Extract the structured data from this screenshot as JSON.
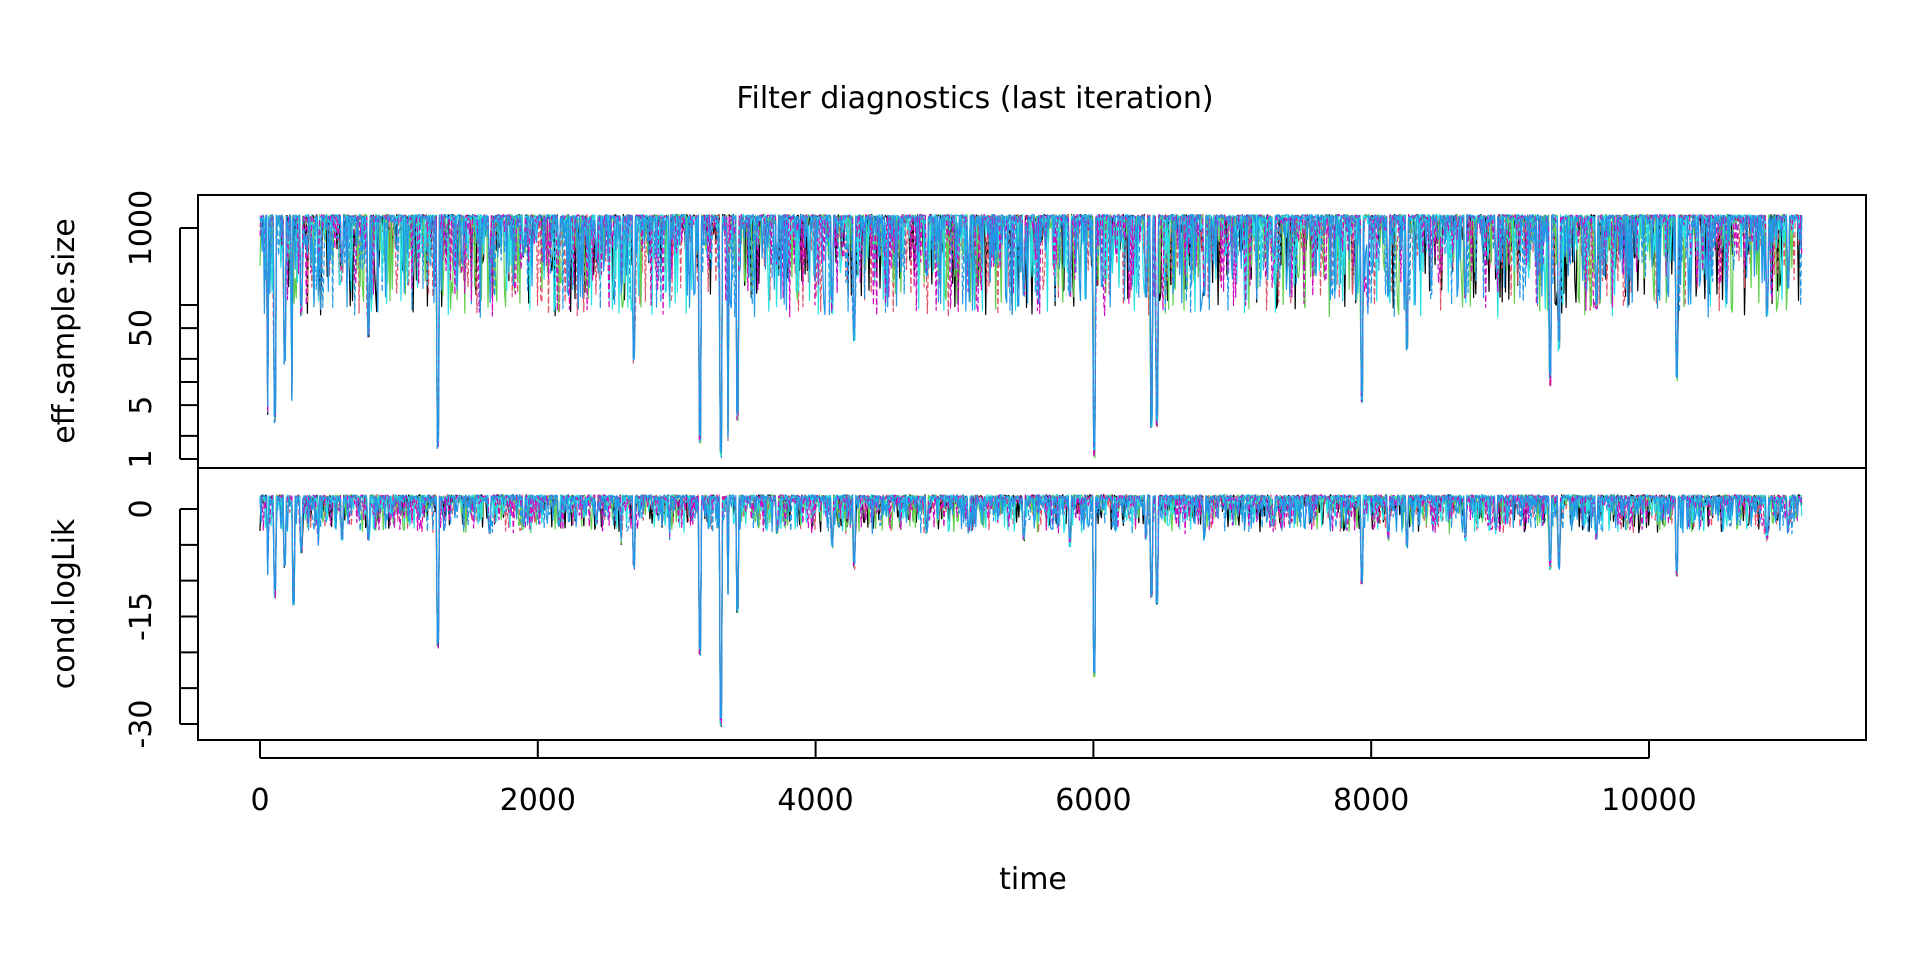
{
  "chart_data": {
    "type": "line",
    "title": "Filter diagnostics (last iteration)",
    "xlabel": "time",
    "xlim": [
      0,
      11200
    ],
    "x_ticks": [
      {
        "value": 0,
        "label": "0"
      },
      {
        "value": 2000,
        "label": "2000"
      },
      {
        "value": 4000,
        "label": "4000"
      },
      {
        "value": 6000,
        "label": "6000"
      },
      {
        "value": 8000,
        "label": "8000"
      },
      {
        "value": 10000,
        "label": "10000"
      }
    ],
    "series_colors": [
      "#000000",
      "#DF536B",
      "#61D04F",
      "#2297E6",
      "#28E2E5",
      "#CD0BBC",
      "#2297E6"
    ],
    "n_series": 7,
    "panels": [
      {
        "ylabel": "eff.sample.size",
        "scale": "log",
        "ylim": [
          1,
          1600
        ],
        "baseline": 1500,
        "y_ticks": [
          {
            "value": 1,
            "label": "1"
          },
          {
            "value": 5,
            "label": "5"
          },
          {
            "value": 50,
            "label": "50"
          },
          {
            "value": 1000,
            "label": "1000"
          }
        ],
        "dips": [
          {
            "x": 55,
            "y": 4
          },
          {
            "x": 110,
            "y": 3.5
          },
          {
            "x": 180,
            "y": 20
          },
          {
            "x": 230,
            "y": 6
          },
          {
            "x": 300,
            "y": 80
          },
          {
            "x": 420,
            "y": 120
          },
          {
            "x": 590,
            "y": 300
          },
          {
            "x": 780,
            "y": 45
          },
          {
            "x": 1280,
            "y": 1.5
          },
          {
            "x": 1650,
            "y": 300
          },
          {
            "x": 1900,
            "y": 500
          },
          {
            "x": 2150,
            "y": 500
          },
          {
            "x": 2420,
            "y": 400
          },
          {
            "x": 2600,
            "y": 150
          },
          {
            "x": 2690,
            "y": 20
          },
          {
            "x": 2950,
            "y": 100
          },
          {
            "x": 3170,
            "y": 1.6
          },
          {
            "x": 3320,
            "y": 1.1
          },
          {
            "x": 3370,
            "y": 2
          },
          {
            "x": 3440,
            "y": 3
          },
          {
            "x": 3720,
            "y": 300
          },
          {
            "x": 4120,
            "y": 90
          },
          {
            "x": 4280,
            "y": 40
          },
          {
            "x": 4800,
            "y": 250
          },
          {
            "x": 5100,
            "y": 300
          },
          {
            "x": 5500,
            "y": 150
          },
          {
            "x": 5830,
            "y": 150
          },
          {
            "x": 6005,
            "y": 1.2
          },
          {
            "x": 6380,
            "y": 150
          },
          {
            "x": 6420,
            "y": 3
          },
          {
            "x": 6460,
            "y": 3
          },
          {
            "x": 6800,
            "y": 150
          },
          {
            "x": 7300,
            "y": 400
          },
          {
            "x": 7930,
            "y": 6
          },
          {
            "x": 8120,
            "y": 150
          },
          {
            "x": 8260,
            "y": 30
          },
          {
            "x": 8680,
            "y": 120
          },
          {
            "x": 8900,
            "y": 300
          },
          {
            "x": 9290,
            "y": 10
          },
          {
            "x": 9350,
            "y": 30
          },
          {
            "x": 9620,
            "y": 100
          },
          {
            "x": 10200,
            "y": 12
          },
          {
            "x": 10850,
            "y": 80
          },
          {
            "x": 11000,
            "y": 200
          }
        ]
      },
      {
        "ylabel": "cond.logLik",
        "scale": "linear",
        "ylim": [
          -31,
          3
        ],
        "baseline": 2,
        "y_ticks": [
          {
            "value": 0,
            "label": "0"
          },
          {
            "value": -15,
            "label": "-15"
          },
          {
            "value": -30,
            "label": "-30"
          }
        ],
        "dips": [
          {
            "x": 55,
            "y": -9
          },
          {
            "x": 110,
            "y": -12
          },
          {
            "x": 180,
            "y": -8
          },
          {
            "x": 240,
            "y": -13
          },
          {
            "x": 300,
            "y": -6
          },
          {
            "x": 420,
            "y": -5
          },
          {
            "x": 590,
            "y": -4
          },
          {
            "x": 780,
            "y": -4
          },
          {
            "x": 1280,
            "y": -19
          },
          {
            "x": 1650,
            "y": -3
          },
          {
            "x": 1900,
            "y": -2
          },
          {
            "x": 2150,
            "y": -2
          },
          {
            "x": 2420,
            "y": -2
          },
          {
            "x": 2600,
            "y": -5
          },
          {
            "x": 2690,
            "y": -8
          },
          {
            "x": 2950,
            "y": -4
          },
          {
            "x": 3170,
            "y": -20
          },
          {
            "x": 3320,
            "y": -30
          },
          {
            "x": 3370,
            "y": -12
          },
          {
            "x": 3440,
            "y": -14
          },
          {
            "x": 3720,
            "y": -3
          },
          {
            "x": 4120,
            "y": -5
          },
          {
            "x": 4280,
            "y": -8
          },
          {
            "x": 4800,
            "y": -3
          },
          {
            "x": 5100,
            "y": -3
          },
          {
            "x": 5500,
            "y": -4
          },
          {
            "x": 5830,
            "y": -5
          },
          {
            "x": 6005,
            "y": -23
          },
          {
            "x": 6380,
            "y": -4
          },
          {
            "x": 6420,
            "y": -12
          },
          {
            "x": 6460,
            "y": -13
          },
          {
            "x": 6800,
            "y": -4
          },
          {
            "x": 7300,
            "y": -2
          },
          {
            "x": 7930,
            "y": -10
          },
          {
            "x": 8120,
            "y": -4
          },
          {
            "x": 8260,
            "y": -5
          },
          {
            "x": 8680,
            "y": -4
          },
          {
            "x": 8900,
            "y": -3
          },
          {
            "x": 9290,
            "y": -8
          },
          {
            "x": 9350,
            "y": -8
          },
          {
            "x": 9620,
            "y": -4
          },
          {
            "x": 10200,
            "y": -9
          },
          {
            "x": 10850,
            "y": -4
          },
          {
            "x": 11000,
            "y": -3
          }
        ]
      }
    ]
  }
}
